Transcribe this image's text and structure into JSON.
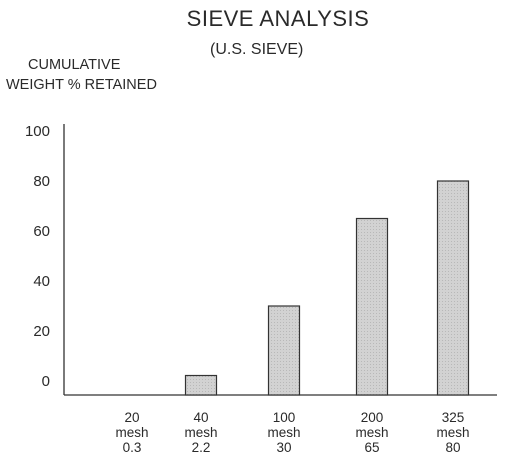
{
  "chart_data": {
    "type": "bar",
    "title": "SIEVE ANALYSIS",
    "subtitle": "(U.S. SIEVE)",
    "ylabel": [
      "CUMULATIVE",
      "WEIGHT % RETAINED"
    ],
    "xlabel": "",
    "ylim": [
      0,
      100
    ],
    "yticks": [
      0,
      20,
      40,
      60,
      80,
      100
    ],
    "categories": [
      {
        "sieve": "20",
        "unit": "mesh",
        "value_label": "0.3"
      },
      {
        "sieve": "40",
        "unit": "mesh",
        "value_label": "2.2"
      },
      {
        "sieve": "100",
        "unit": "mesh",
        "value_label": "30"
      },
      {
        "sieve": "200",
        "unit": "mesh",
        "value_label": "65"
      },
      {
        "sieve": "325",
        "unit": "mesh",
        "value_label": "80"
      }
    ],
    "values": [
      0.3,
      2.2,
      30,
      65,
      80
    ],
    "grid": false,
    "legend": "none",
    "bar_color": "#cfcfcf",
    "bar_edge_color": "#333333"
  }
}
